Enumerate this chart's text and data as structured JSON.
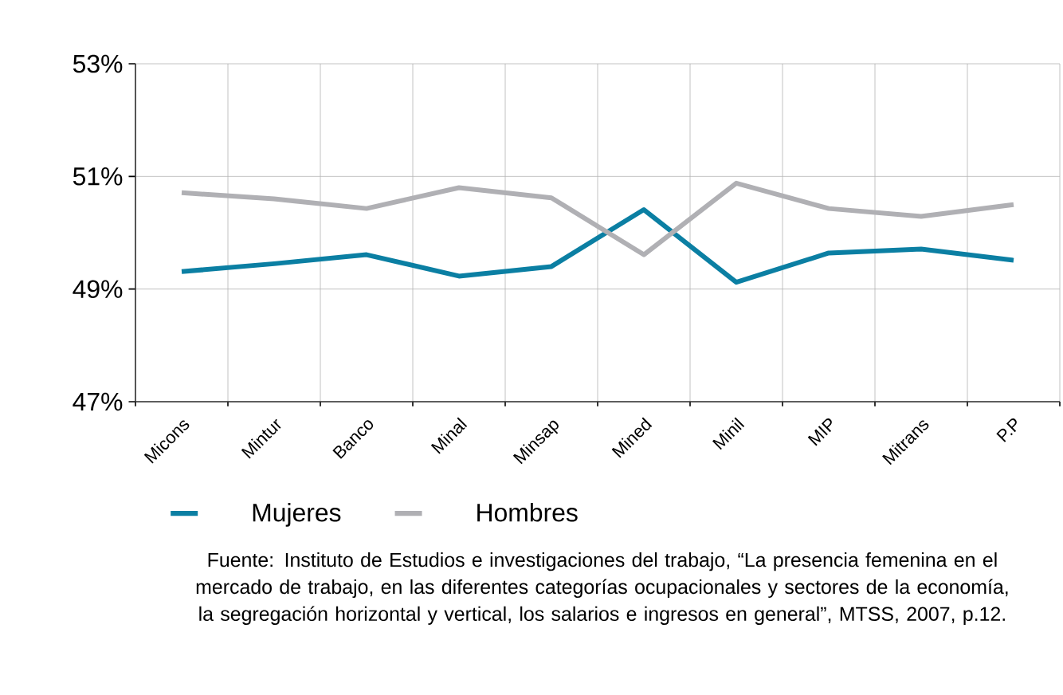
{
  "chart_data": {
    "type": "line",
    "categories": [
      "Micons",
      "Mintur",
      "Banco",
      "Minal",
      "Minsap",
      "Mined",
      "Minil",
      "MIP",
      "Mitrans",
      "P.P"
    ],
    "series": [
      {
        "name": "Mujeres",
        "color": "#0b7fa3",
        "values": [
          49.31,
          49.45,
          49.61,
          49.23,
          49.4,
          50.41,
          49.12,
          49.64,
          49.71,
          49.51
        ]
      },
      {
        "name": "Hombres",
        "color": "#b0b0b4",
        "values": [
          50.71,
          50.6,
          50.43,
          50.8,
          50.62,
          49.61,
          50.88,
          50.43,
          50.29,
          50.5
        ]
      }
    ],
    "ylim": [
      47,
      53
    ],
    "yticks": [
      {
        "value": 47,
        "label": "47%"
      },
      {
        "value": 49,
        "label": "49%"
      },
      {
        "value": 51,
        "label": "51%"
      },
      {
        "value": 53,
        "label": "53%"
      }
    ],
    "grid": true,
    "legend": "bottom",
    "marker": "none",
    "line_style": "solid",
    "annotations": [
      "Fuente: Instituto de Estudios e investigaciones del trabajo, “La presencia femenina en el mercado de trabajo, en las diferentes categorías ocupacionales y sectores de la economía, la segregación horizontal y vertical, los salarios e ingresos en general”, MTSS, 2007, p.12."
    ]
  }
}
